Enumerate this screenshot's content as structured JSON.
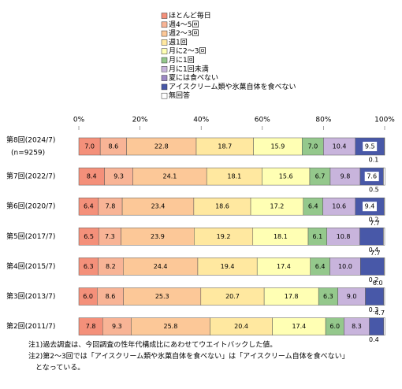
{
  "chart_data": {
    "type": "bar",
    "orientation": "horizontal",
    "stacked": true,
    "categories": [
      "第8回(2024/7)",
      "第7回(2022/7)",
      "第6回(2020/7)",
      "第5回(2017/7)",
      "第4回(2015/7)",
      "第3回(2013/7)",
      "第2回(2011/7)"
    ],
    "sample_size_label": "(n=9259)",
    "xlim": [
      0,
      100
    ],
    "xticks": [
      {
        "value": 0,
        "label": "0%"
      },
      {
        "value": 20,
        "label": "20%"
      },
      {
        "value": 40,
        "label": "40%"
      },
      {
        "value": 60,
        "label": "60%"
      },
      {
        "value": 80,
        "label": "80%"
      },
      {
        "value": 100,
        "label": "100%"
      }
    ],
    "series": [
      {
        "name": "ほとんど毎日",
        "color": "#f4907a",
        "values": [
          7.0,
          8.4,
          6.4,
          6.5,
          6.3,
          6.0,
          7.8
        ],
        "value_labels": [
          "7.0",
          "8.4",
          "6.4",
          "6.5",
          "6.3",
          "6.0",
          "7.8"
        ]
      },
      {
        "name": "週4～5回",
        "color": "#f8b496",
        "values": [
          8.6,
          9.3,
          7.8,
          7.3,
          8.2,
          8.6,
          9.3
        ],
        "value_labels": [
          "8.6",
          "9.3",
          "7.8",
          "7.3",
          "8.2",
          "8.6",
          "9.3"
        ]
      },
      {
        "name": "週2～3回",
        "color": "#fcc898",
        "values": [
          22.8,
          24.1,
          23.4,
          23.9,
          24.4,
          25.3,
          25.8
        ],
        "value_labels": [
          "22.8",
          "24.1",
          "23.4",
          "23.9",
          "24.4",
          "25.3",
          "25.8"
        ]
      },
      {
        "name": "週1回",
        "color": "#ffe8a0",
        "values": [
          18.7,
          18.1,
          18.6,
          19.2,
          19.4,
          20.7,
          20.4
        ],
        "value_labels": [
          "18.7",
          "18.1",
          "18.6",
          "19.2",
          "19.4",
          "20.7",
          "20.4"
        ]
      },
      {
        "name": "月に2～3回",
        "color": "#ffffb4",
        "values": [
          15.9,
          15.6,
          17.2,
          18.1,
          17.4,
          17.8,
          17.4
        ],
        "value_labels": [
          "15.9",
          "15.6",
          "17.2",
          "18.1",
          "17.4",
          "17.8",
          "17.4"
        ]
      },
      {
        "name": "月に1回",
        "color": "#94c88c",
        "values": [
          7.0,
          6.7,
          6.4,
          6.1,
          6.4,
          6.3,
          6.0
        ],
        "value_labels": [
          "7.0",
          "6.7",
          "6.4",
          "6.1",
          "6.4",
          "6.3",
          "6.0"
        ]
      },
      {
        "name": "月に1回未満",
        "color": "#c8b4dc",
        "values": [
          10.4,
          9.8,
          10.6,
          10.8,
          10.0,
          9.0,
          8.3
        ],
        "value_labels": [
          "10.4",
          "9.8",
          "10.6",
          "10.8",
          "10.0",
          "9.0",
          "8.3"
        ]
      },
      {
        "name": "夏には食べない",
        "color": "#9c88c4",
        "values": [
          null,
          null,
          null,
          null,
          null,
          null,
          null
        ]
      },
      {
        "name": "アイスクリーム類や氷菓自体を食べない",
        "color": "#4858a8",
        "values": [
          9.5,
          7.6,
          9.4,
          7.7,
          7.7,
          6.0,
          4.7
        ],
        "value_labels": [
          "9.5",
          "7.6",
          "9.4",
          "7.7",
          "7.7",
          "6.0",
          "4.7"
        ]
      },
      {
        "name": "無回答",
        "color": "#ffffff",
        "values": [
          0.1,
          0.5,
          0.2,
          0.4,
          0.2,
          0.3,
          0.4
        ],
        "value_labels": [
          "0.1",
          "0.5",
          "0.2",
          "0.4",
          "0.2",
          "0.3",
          "0.4"
        ]
      }
    ],
    "notes": [
      "注1)過去調査は、今回調査の性年代構成比にあわせてウエイトバックした値。",
      "注2)第2～3回では「アイスクリーム類や氷菓自体を食べない」は「アイスクリーム自体を食べない」",
      "　となっている。"
    ]
  }
}
